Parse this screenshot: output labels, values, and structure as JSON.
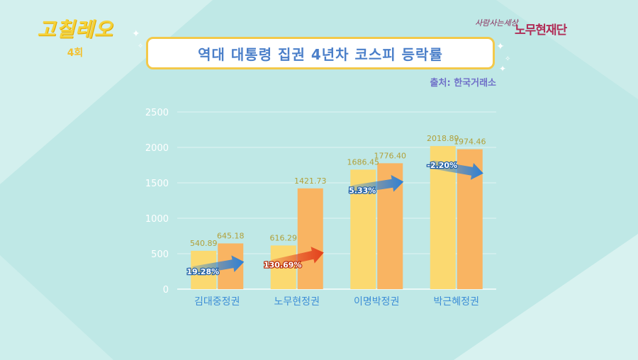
{
  "show": {
    "logo": "고칠레오",
    "episode": "4회"
  },
  "foundation": {
    "tagline": "사람사는세상",
    "name": "노무현재단"
  },
  "title": "역대 대통령 집권 4년차 코스피 등락률",
  "source": "출처: 한국거래소",
  "colors": {
    "bar_start": "#fbd970",
    "bar_end": "#f9b462",
    "arrow_up": "#2b7fd6",
    "arrow_big": "#e2401c",
    "value_label": "#b1a03a",
    "axis_text": "#ffffff",
    "category_text": "#3d8ed6"
  },
  "chart_data": {
    "type": "bar",
    "categories": [
      "김대중정권",
      "노무현정권",
      "이명박정권",
      "박근혜정권"
    ],
    "series": [
      {
        "values": [
          540.89,
          616.29,
          1686.45,
          2018.89
        ]
      },
      {
        "values": [
          645.18,
          1421.73,
          1776.4,
          1974.46
        ]
      }
    ],
    "value_labels": [
      [
        "540.89",
        "645.18"
      ],
      [
        "616.29",
        "1421.73"
      ],
      [
        "1686.45",
        "1776.40"
      ],
      [
        "2018.89",
        "1974.46"
      ]
    ],
    "changes": [
      {
        "label": "19.28%",
        "direction": "up"
      },
      {
        "label": "130.69%",
        "direction": "up-large"
      },
      {
        "label": "5.33%",
        "direction": "up"
      },
      {
        "label": "-2.20%",
        "direction": "down"
      }
    ],
    "yticks": [
      "0",
      "500",
      "1000",
      "1500",
      "2000",
      "2500"
    ],
    "ylim": [
      0,
      2500
    ],
    "grid": true
  }
}
